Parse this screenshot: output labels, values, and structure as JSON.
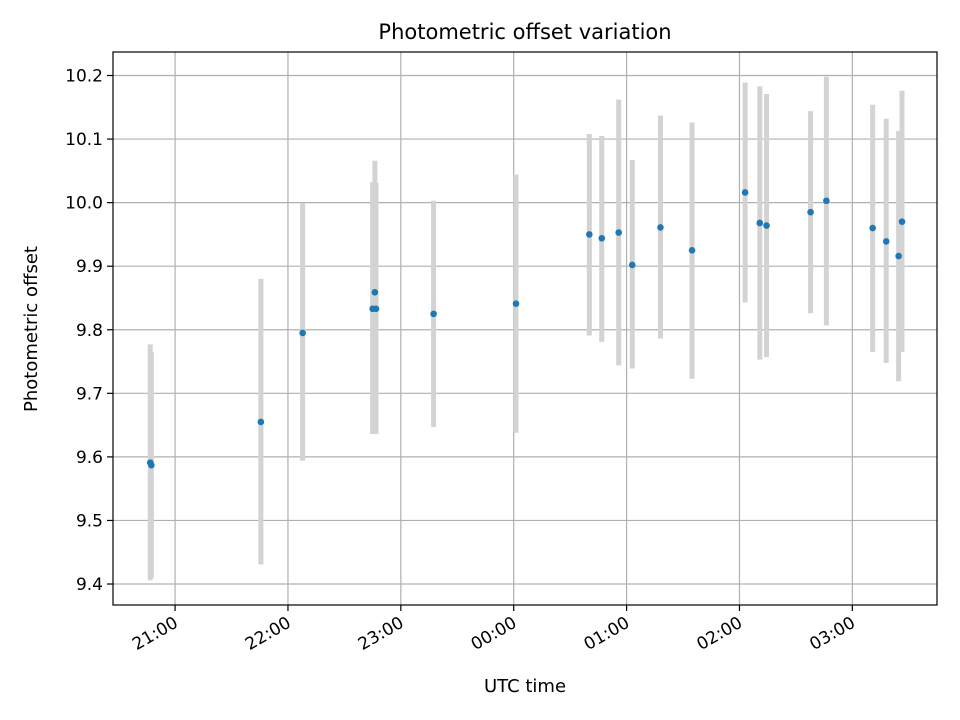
{
  "chart_data": {
    "type": "scatter",
    "title": "Photometric offset variation",
    "xlabel": "UTC time",
    "ylabel": "Photometric offset",
    "x_unit": "hours after 21:00 UTC",
    "xlim": [
      -0.55,
      6.75
    ],
    "ylim": [
      9.367,
      10.237
    ],
    "grid": true,
    "x_ticks": [
      {
        "value": 0,
        "label": "21:00"
      },
      {
        "value": 1,
        "label": "22:00"
      },
      {
        "value": 2,
        "label": "23:00"
      },
      {
        "value": 3,
        "label": "00:00"
      },
      {
        "value": 4,
        "label": "01:00"
      },
      {
        "value": 5,
        "label": "02:00"
      },
      {
        "value": 6,
        "label": "03:00"
      }
    ],
    "y_ticks": [
      {
        "value": 9.4,
        "label": "9.4"
      },
      {
        "value": 9.5,
        "label": "9.5"
      },
      {
        "value": 9.6,
        "label": "9.6"
      },
      {
        "value": 9.7,
        "label": "9.7"
      },
      {
        "value": 9.8,
        "label": "9.8"
      },
      {
        "value": 9.9,
        "label": "9.9"
      },
      {
        "value": 10.0,
        "label": "10.0"
      },
      {
        "value": 10.1,
        "label": "10.1"
      },
      {
        "value": 10.2,
        "label": "10.2"
      }
    ],
    "colors": {
      "point": "#1f77b4",
      "errorbar": "#d3d3d3",
      "grid": "#b0b0b0"
    },
    "points": [
      {
        "x": -0.22,
        "y": 9.591,
        "ylow": 9.406,
        "yhigh": 9.777
      },
      {
        "x": -0.21,
        "y": 9.587,
        "ylow": 9.41,
        "yhigh": 9.765
      },
      {
        "x": 0.76,
        "y": 9.655,
        "ylow": 9.431,
        "yhigh": 9.88
      },
      {
        "x": 1.13,
        "y": 9.795,
        "ylow": 9.594,
        "yhigh": 9.999
      },
      {
        "x": 1.75,
        "y": 9.833,
        "ylow": 9.636,
        "yhigh": 10.032
      },
      {
        "x": 1.77,
        "y": 9.859,
        "ylow": 9.652,
        "yhigh": 10.066
      },
      {
        "x": 1.78,
        "y": 9.833,
        "ylow": 9.636,
        "yhigh": 10.031
      },
      {
        "x": 2.29,
        "y": 9.825,
        "ylow": 9.647,
        "yhigh": 10.003
      },
      {
        "x": 3.02,
        "y": 9.841,
        "ylow": 9.638,
        "yhigh": 10.044
      },
      {
        "x": 3.67,
        "y": 9.95,
        "ylow": 9.791,
        "yhigh": 10.108
      },
      {
        "x": 3.78,
        "y": 9.944,
        "ylow": 9.781,
        "yhigh": 10.105
      },
      {
        "x": 3.93,
        "y": 9.953,
        "ylow": 9.744,
        "yhigh": 10.162
      },
      {
        "x": 4.05,
        "y": 9.902,
        "ylow": 9.739,
        "yhigh": 10.067
      },
      {
        "x": 4.3,
        "y": 9.961,
        "ylow": 9.786,
        "yhigh": 10.137
      },
      {
        "x": 4.58,
        "y": 9.925,
        "ylow": 9.723,
        "yhigh": 10.126
      },
      {
        "x": 5.05,
        "y": 10.016,
        "ylow": 9.843,
        "yhigh": 10.189
      },
      {
        "x": 5.18,
        "y": 9.968,
        "ylow": 9.753,
        "yhigh": 10.183
      },
      {
        "x": 5.24,
        "y": 9.964,
        "ylow": 9.757,
        "yhigh": 10.171
      },
      {
        "x": 5.63,
        "y": 9.985,
        "ylow": 9.826,
        "yhigh": 10.144
      },
      {
        "x": 5.77,
        "y": 10.003,
        "ylow": 9.807,
        "yhigh": 10.198
      },
      {
        "x": 6.18,
        "y": 9.96,
        "ylow": 9.765,
        "yhigh": 10.154
      },
      {
        "x": 6.3,
        "y": 9.939,
        "ylow": 9.748,
        "yhigh": 10.132
      },
      {
        "x": 6.41,
        "y": 9.916,
        "ylow": 9.719,
        "yhigh": 10.113
      },
      {
        "x": 6.44,
        "y": 9.97,
        "ylow": 9.765,
        "yhigh": 10.176
      }
    ]
  }
}
